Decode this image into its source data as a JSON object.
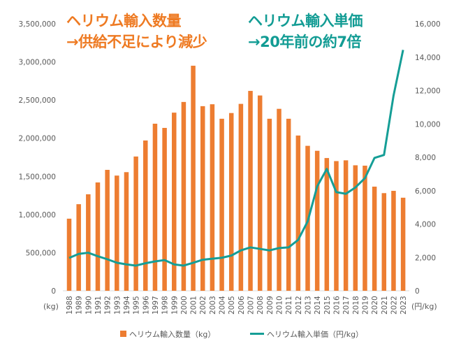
{
  "chart_data": {
    "type": "bar+line",
    "categories": [
      "1988",
      "1989",
      "1990",
      "1991",
      "1992",
      "1993",
      "1994",
      "1995",
      "1996",
      "1997",
      "1998",
      "1999",
      "2000",
      "2001",
      "2002",
      "2003",
      "2004",
      "2005",
      "2006",
      "2007",
      "2008",
      "2009",
      "2010",
      "2011",
      "2012",
      "2013",
      "2014",
      "2015",
      "2016",
      "2017",
      "2018",
      "2019",
      "2020",
      "2021",
      "2022",
      "2023"
    ],
    "series": [
      {
        "name": "ヘリウム輸入数量（kg）",
        "type": "bar",
        "axis": "left",
        "color": "#ED7D31",
        "values": [
          945000,
          1135000,
          1265000,
          1420000,
          1585000,
          1510000,
          1555000,
          1760000,
          1970000,
          2190000,
          2135000,
          2335000,
          2475000,
          2950000,
          2420000,
          2445000,
          2255000,
          2330000,
          2450000,
          2620000,
          2560000,
          2255000,
          2385000,
          2255000,
          2035000,
          1900000,
          1835000,
          1740000,
          1700000,
          1710000,
          1645000,
          1640000,
          1365000,
          1280000,
          1310000,
          1220000
        ]
      },
      {
        "name": "ヘリウム輸入単価（円/kg）",
        "type": "line",
        "axis": "right",
        "color": "#159E96",
        "values": [
          1970,
          2210,
          2280,
          2070,
          1890,
          1680,
          1580,
          1510,
          1650,
          1760,
          1840,
          1580,
          1510,
          1680,
          1860,
          1920,
          1980,
          2110,
          2420,
          2600,
          2510,
          2420,
          2560,
          2600,
          3050,
          4160,
          6260,
          7300,
          5910,
          5810,
          6190,
          6750,
          7960,
          8140,
          11700,
          14430
        ]
      }
    ],
    "left_axis": {
      "label": "(kg)",
      "range": [
        0,
        3500000
      ],
      "ticks": [
        "0",
        "500,000",
        "1,000,000",
        "1,500,000",
        "2,000,000",
        "2,500,000",
        "3,000,000",
        "3,500,000"
      ]
    },
    "right_axis": {
      "label": "(円/kg)",
      "range": [
        0,
        16000
      ],
      "ticks": [
        "0",
        "2,000",
        "4,000",
        "6,000",
        "8,000",
        "10,000",
        "12,000",
        "14,000",
        "16,000"
      ]
    },
    "grid": false,
    "legend": "bottom",
    "annotations": [
      {
        "lines": [
          "ヘリウム輸入数量",
          "→供給不足により減少"
        ],
        "color": "#EE7A22"
      },
      {
        "lines": [
          "ヘリウム輸入単価",
          "→20年前の約7倍"
        ],
        "color": "#129C94"
      }
    ]
  }
}
